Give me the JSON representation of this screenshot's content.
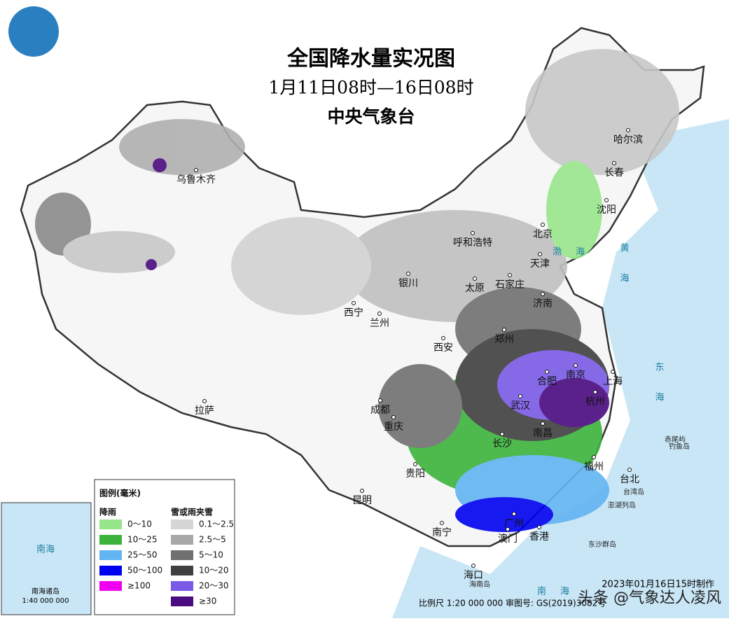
{
  "header": {
    "title": "全国降水量实况图",
    "subtitle": "1月11日08时—16日08时",
    "agency": "中央气象台"
  },
  "cities": [
    "乌鲁木齐",
    "哈尔滨",
    "长春",
    "沈阳",
    "北京",
    "呼和浩特",
    "天津",
    "石家庄",
    "太原",
    "银川",
    "济南",
    "西宁",
    "兰州",
    "郑州",
    "西安",
    "合肥",
    "南京",
    "上海",
    "成都",
    "武汉",
    "杭州",
    "重庆",
    "南昌",
    "长沙",
    "福州",
    "台北",
    "贵阳",
    "昆明",
    "拉萨",
    "南宁",
    "广州",
    "澳门",
    "香港",
    "海口"
  ],
  "seas": [
    "渤海",
    "黄海",
    "东海",
    "南海"
  ],
  "islands": [
    "赤尾屿",
    "钓鱼岛",
    "台湾岛",
    "澎湖列岛",
    "东沙群岛",
    "海南岛"
  ],
  "legend": {
    "title": "图例(毫米)",
    "rain_heading": "降雨",
    "snow_heading": "雪或雨夹雪",
    "rain": [
      {
        "label": "0～10",
        "color": "#98e68c"
      },
      {
        "label": "10～25",
        "color": "#3cb43c"
      },
      {
        "label": "25～50",
        "color": "#62b4f2"
      },
      {
        "label": "50～100",
        "color": "#0000f0"
      },
      {
        "label": "≥100",
        "color": "#f000f0"
      }
    ],
    "snow": [
      {
        "label": "0.1～2.5",
        "color": "#d6d6d6"
      },
      {
        "label": "2.5～5",
        "color": "#a8a8a8"
      },
      {
        "label": "5～10",
        "color": "#707070"
      },
      {
        "label": "10～20",
        "color": "#404040"
      },
      {
        "label": "20～30",
        "color": "#7a5ae6"
      },
      {
        "label": "≥30",
        "color": "#4a0a80"
      }
    ]
  },
  "inset": {
    "title": "南海诸岛",
    "scale": "1:40 000 000",
    "sea": "南海"
  },
  "footer": {
    "scale": "比例尺 1:20 000 000 审图号: GS(2019)3082号",
    "maker": "2023年01月16日15时制作",
    "watermark": "头条 @气象达人凌风"
  }
}
